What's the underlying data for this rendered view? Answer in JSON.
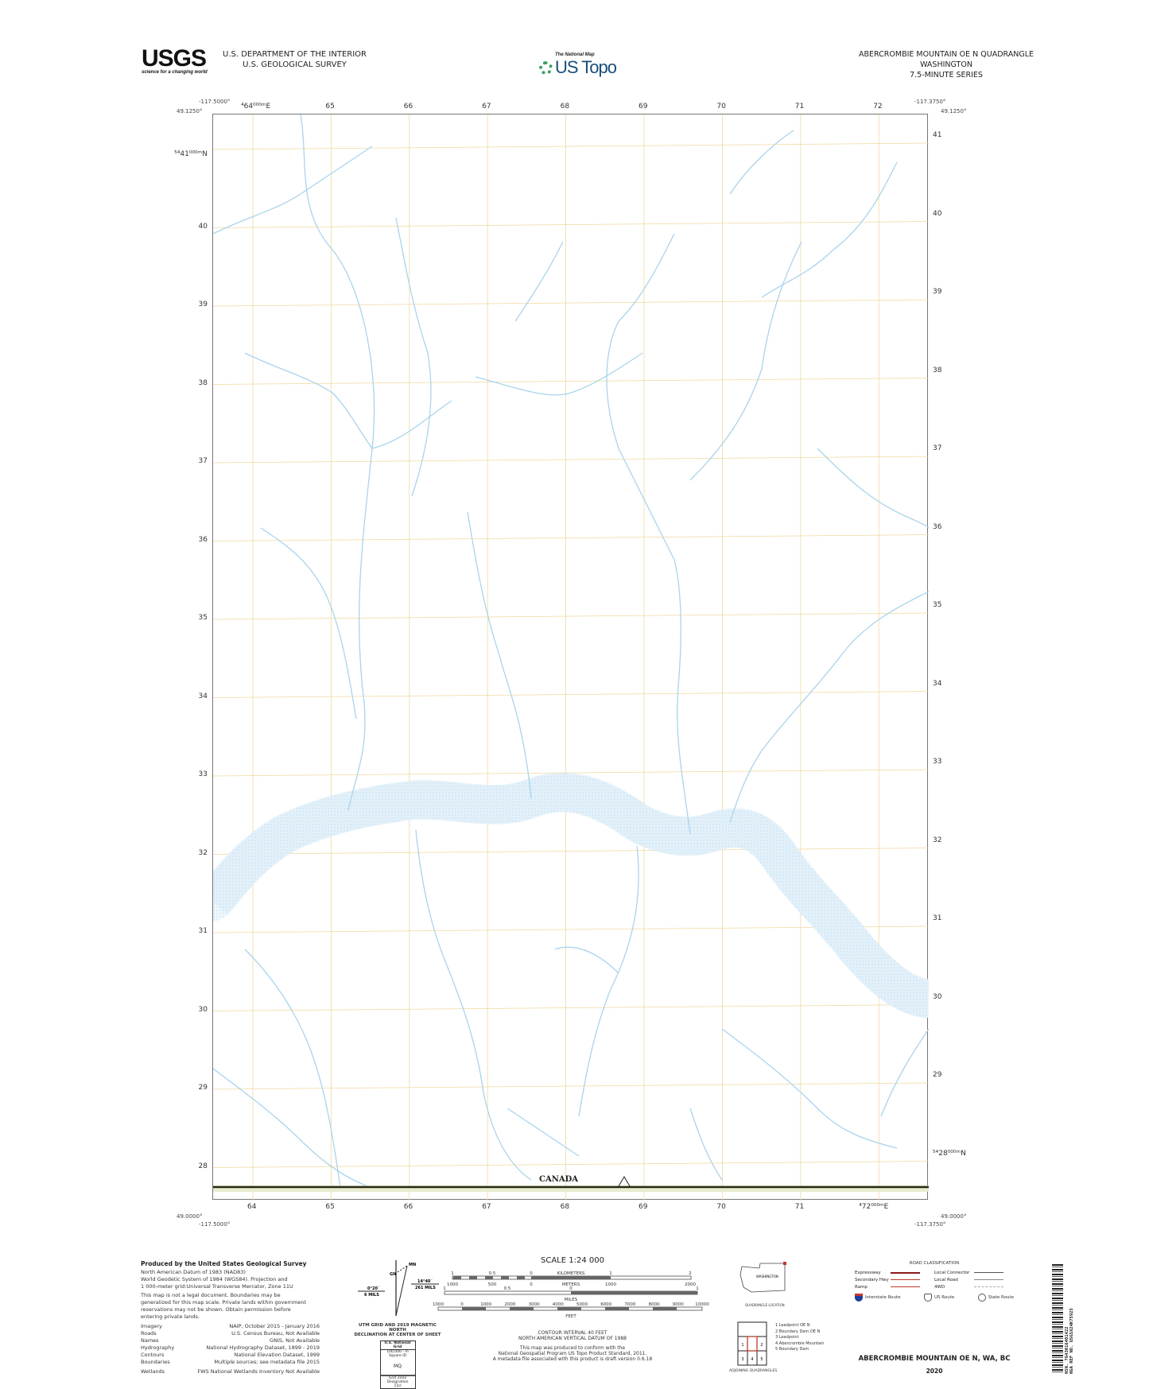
{
  "header": {
    "usgs_logo_text": "USGS",
    "usgs_tagline": "science for a changing world",
    "department": "U.S. DEPARTMENT OF THE INTERIOR",
    "survey": "U.S. GEOLOGICAL SURVEY",
    "national_map": "The National Map",
    "us_topo": "US Topo",
    "quad_title": "ABERCROMBIE MOUNTAIN OE N QUADRANGLE",
    "state": "WASHINGTON",
    "series": "7.5-MINUTE SERIES"
  },
  "map": {
    "corners": {
      "nw_lon": "-117.5000°",
      "nw_lat": "49.1250°",
      "ne_lon": "-117.3750°",
      "ne_lat": "49.1250°",
      "sw_lat": "49.0000°",
      "sw_lon": "-117.5000°",
      "se_lat": "49.0000°",
      "se_lon": "-117.3750°"
    },
    "top_easting": [
      "⁴64⁰⁰⁰ᵐE",
      "65",
      "66",
      "67",
      "68",
      "69",
      "70",
      "71",
      "72"
    ],
    "bottom_easting": [
      "64",
      "65",
      "66",
      "67",
      "68",
      "69",
      "70",
      "71",
      "⁴72⁰⁰⁰ᵐE"
    ],
    "left_northing": [
      "⁵⁴41⁰⁰⁰ᵐN",
      "40",
      "39",
      "38",
      "37",
      "36",
      "35",
      "34",
      "33",
      "32",
      "31",
      "30",
      "29",
      "28"
    ],
    "right_northing": [
      "41",
      "40",
      "39",
      "38",
      "37",
      "36",
      "35",
      "34",
      "33",
      "32",
      "31",
      "30",
      "29",
      "⁵⁴28⁰⁰⁰ᵐN"
    ],
    "place_label": "CANADA",
    "colors": {
      "water": "#a9d4ec",
      "grid": "#f0d9a0",
      "border": "#3a3a1a"
    }
  },
  "credits": {
    "title": "Produced by the United States Geological Survey",
    "lines": [
      "North American Datum of 1983 (NAD83)",
      "World Geodetic System of 1984 (WGS84). Projection and",
      "1 000-meter grid:Universal Transverse Mercator, Zone 11U"
    ],
    "disclaimer": [
      "This map is not a legal document. Boundaries may be",
      "generalized for this map scale. Private lands within government",
      "reservations may not be shown. Obtain permission before",
      "entering private lands."
    ],
    "sources": [
      {
        "label": "Imagery",
        "value": "NAIP, October 2015 - January 2016"
      },
      {
        "label": "Roads",
        "value": "U.S. Census Bureau, Not Available"
      },
      {
        "label": "Names",
        "value": "GNIS, Not Available"
      },
      {
        "label": "Hydrography",
        "value": "National Hydrography Dataset, 1899 - 2019"
      },
      {
        "label": "Contours",
        "value": "National Elevation Dataset, 1999"
      },
      {
        "label": "Boundaries",
        "value": "Multiple sources; see metadata file 2015"
      },
      {
        "label": "Wetlands",
        "value": "FWS National Wetlands Inventory Not Available"
      }
    ]
  },
  "declination": {
    "mn": "MN",
    "gn": "GN",
    "left_angle": "0°20´",
    "left_mils": "6 MILS",
    "right_angle": "14°40´",
    "right_mils": "261 MILS",
    "caption1": "UTM GRID AND 2019 MAGNETIC NORTH",
    "caption2": "DECLINATION AT CENTER OF SHEET"
  },
  "grid_box": {
    "title": "U.S. National Grid",
    "sub": "100,000 - m Square ID",
    "square": "MQ",
    "zone_label": "Grid Zone Designation",
    "zone": "11U"
  },
  "scale": {
    "title": "SCALE 1:24 000",
    "km_labels": [
      "1",
      "0.5",
      "0",
      "KILOMETERS",
      "1",
      "2"
    ],
    "m_labels": [
      "1000",
      "500",
      "0",
      "METERS",
      "1000",
      "2000"
    ],
    "mi_labels": [
      "1",
      "0.5",
      "0",
      "1"
    ],
    "mi_unit": "MILES",
    "ft_labels": [
      "1000",
      "0",
      "1000",
      "2000",
      "3000",
      "4000",
      "5000",
      "6000",
      "7000",
      "8000",
      "9000",
      "10000"
    ],
    "ft_unit": "FEET",
    "contour": "CONTOUR INTERVAL 40 FEET",
    "datum": "NORTH AMERICAN VERTICAL DATUM OF 1988",
    "note": [
      "This map was produced to conform with the",
      "National Geospatial Program US Topo Product Standard, 2011.",
      "A metadata file associated with this product is draft version 0.6.18"
    ]
  },
  "location": {
    "state": "WASHINGTON",
    "caption": "QUADRANGLE LOCATION"
  },
  "adjoining": {
    "caption": "ADJOINING QUADRANGLES",
    "cells": [
      "1",
      "2",
      "3",
      "4",
      "5"
    ],
    "names": [
      "1 Leadpoint OE N",
      "2 Boundary Dam OE N",
      "3 Leadpoint",
      "4 Abercrombie Mountain",
      "5 Boundary Dam"
    ]
  },
  "roads": {
    "title": "ROAD CLASSIFICATION",
    "left": [
      {
        "label": "Expressway",
        "color": "#8b1a1a"
      },
      {
        "label": "Secondary Hwy",
        "color": "#c0392b"
      },
      {
        "label": "Ramp",
        "color": "#c0392b"
      }
    ],
    "right": [
      {
        "label": "Local Connector",
        "color": "#555555"
      },
      {
        "label": "Local Road",
        "color": "#888888"
      },
      {
        "label": "4WD",
        "color": "#aaaaaa"
      }
    ],
    "shields": [
      "Interstate Route",
      "US Route",
      "State Route"
    ]
  },
  "footer": {
    "title": "ABERCROMBIE MOUNTAIN OE N,  WA, BC",
    "year": "2020"
  },
  "barcode": {
    "nsn": "NSN. 7643016401422",
    "nga": "NGA REF NO. USGSX24K75925"
  }
}
